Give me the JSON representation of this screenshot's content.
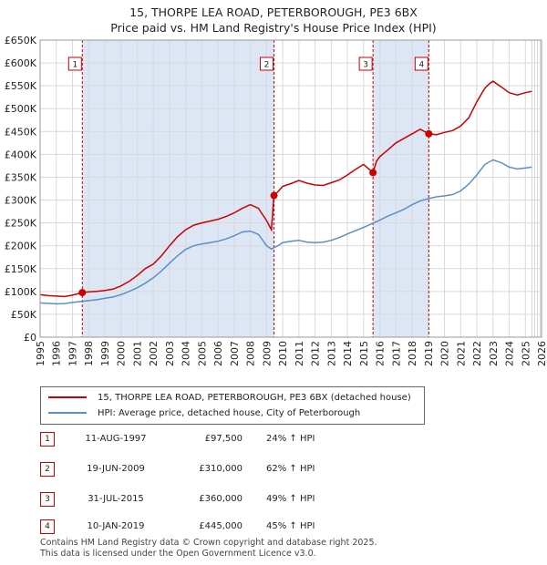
{
  "title_line1": "15, THORPE LEA ROAD, PETERBOROUGH, PE3 6BX",
  "title_line2": "Price paid vs. HM Land Registry's House Price Index (HPI)",
  "chart_data": {
    "type": "line",
    "xlim": [
      1995,
      2026
    ],
    "ylim": [
      0,
      650000
    ],
    "x_ticks": [
      1995,
      1996,
      1997,
      1998,
      1999,
      2000,
      2001,
      2002,
      2003,
      2004,
      2005,
      2006,
      2007,
      2008,
      2009,
      2010,
      2011,
      2012,
      2013,
      2014,
      2015,
      2016,
      2017,
      2018,
      2019,
      2020,
      2021,
      2022,
      2023,
      2024,
      2025,
      2026
    ],
    "y_ticks": [
      {
        "value": 0,
        "label": "£0"
      },
      {
        "value": 50000,
        "label": "£50K"
      },
      {
        "value": 100000,
        "label": "£100K"
      },
      {
        "value": 150000,
        "label": "£150K"
      },
      {
        "value": 200000,
        "label": "£200K"
      },
      {
        "value": 250000,
        "label": "£250K"
      },
      {
        "value": 300000,
        "label": "£300K"
      },
      {
        "value": 350000,
        "label": "£350K"
      },
      {
        "value": 400000,
        "label": "£400K"
      },
      {
        "value": 450000,
        "label": "£450K"
      },
      {
        "value": 500000,
        "label": "£500K"
      },
      {
        "value": 550000,
        "label": "£550K"
      },
      {
        "value": 600000,
        "label": "£600K"
      },
      {
        "value": 650000,
        "label": "£650K"
      }
    ],
    "series": [
      {
        "name": "15, THORPE LEA ROAD, PETERBOROUGH, PE3 6BX (detached house)",
        "color": "#cc0000",
        "points": [
          [
            1995.0,
            93000
          ],
          [
            1995.5,
            91000
          ],
          [
            1996.0,
            90000
          ],
          [
            1996.5,
            89000
          ],
          [
            1997.0,
            92000
          ],
          [
            1997.61,
            97500
          ],
          [
            1998.0,
            99000
          ],
          [
            1998.5,
            100000
          ],
          [
            1999.0,
            102000
          ],
          [
            1999.5,
            105000
          ],
          [
            2000.0,
            112000
          ],
          [
            2000.5,
            122000
          ],
          [
            2001.0,
            135000
          ],
          [
            2001.5,
            150000
          ],
          [
            2002.0,
            160000
          ],
          [
            2002.5,
            178000
          ],
          [
            2003.0,
            200000
          ],
          [
            2003.5,
            220000
          ],
          [
            2004.0,
            235000
          ],
          [
            2004.5,
            245000
          ],
          [
            2005.0,
            250000
          ],
          [
            2005.5,
            254000
          ],
          [
            2006.0,
            258000
          ],
          [
            2006.5,
            264000
          ],
          [
            2007.0,
            272000
          ],
          [
            2007.5,
            282000
          ],
          [
            2008.0,
            290000
          ],
          [
            2008.5,
            282000
          ],
          [
            2009.0,
            255000
          ],
          [
            2009.3,
            235000
          ],
          [
            2009.46,
            310000
          ],
          [
            2009.7,
            318000
          ],
          [
            2010.0,
            330000
          ],
          [
            2010.5,
            336000
          ],
          [
            2011.0,
            343000
          ],
          [
            2011.5,
            337000
          ],
          [
            2012.0,
            333000
          ],
          [
            2012.5,
            332000
          ],
          [
            2013.0,
            338000
          ],
          [
            2013.5,
            344000
          ],
          [
            2014.0,
            355000
          ],
          [
            2014.5,
            367000
          ],
          [
            2015.0,
            378000
          ],
          [
            2015.58,
            360000
          ],
          [
            2015.8,
            385000
          ],
          [
            2016.0,
            395000
          ],
          [
            2016.5,
            410000
          ],
          [
            2017.0,
            425000
          ],
          [
            2017.5,
            435000
          ],
          [
            2018.0,
            445000
          ],
          [
            2018.5,
            455000
          ],
          [
            2019.03,
            445000
          ],
          [
            2019.5,
            443000
          ],
          [
            2020.0,
            448000
          ],
          [
            2020.5,
            452000
          ],
          [
            2021.0,
            462000
          ],
          [
            2021.5,
            480000
          ],
          [
            2022.0,
            515000
          ],
          [
            2022.5,
            545000
          ],
          [
            2022.8,
            555000
          ],
          [
            2023.0,
            560000
          ],
          [
            2023.5,
            548000
          ],
          [
            2024.0,
            535000
          ],
          [
            2024.5,
            530000
          ],
          [
            2025.0,
            535000
          ],
          [
            2025.4,
            538000
          ]
        ]
      },
      {
        "name": "HPI: Average price, detached house, City of Peterborough",
        "color": "#5b8fc9",
        "points": [
          [
            1995.0,
            75000
          ],
          [
            1995.5,
            74000
          ],
          [
            1996.0,
            73000
          ],
          [
            1996.5,
            73500
          ],
          [
            1997.0,
            76000
          ],
          [
            1997.5,
            78000
          ],
          [
            1998.0,
            80000
          ],
          [
            1998.5,
            82000
          ],
          [
            1999.0,
            85000
          ],
          [
            1999.5,
            88000
          ],
          [
            2000.0,
            93000
          ],
          [
            2000.5,
            100000
          ],
          [
            2001.0,
            108000
          ],
          [
            2001.5,
            118000
          ],
          [
            2002.0,
            130000
          ],
          [
            2002.5,
            145000
          ],
          [
            2003.0,
            162000
          ],
          [
            2003.5,
            178000
          ],
          [
            2004.0,
            192000
          ],
          [
            2004.5,
            200000
          ],
          [
            2005.0,
            204000
          ],
          [
            2005.5,
            207000
          ],
          [
            2006.0,
            210000
          ],
          [
            2006.5,
            215000
          ],
          [
            2007.0,
            222000
          ],
          [
            2007.5,
            230000
          ],
          [
            2008.0,
            232000
          ],
          [
            2008.5,
            225000
          ],
          [
            2009.0,
            200000
          ],
          [
            2009.3,
            193000
          ],
          [
            2009.7,
            200000
          ],
          [
            2010.0,
            207000
          ],
          [
            2010.5,
            210000
          ],
          [
            2011.0,
            212000
          ],
          [
            2011.5,
            208000
          ],
          [
            2012.0,
            207000
          ],
          [
            2012.5,
            208000
          ],
          [
            2013.0,
            212000
          ],
          [
            2013.5,
            218000
          ],
          [
            2014.0,
            226000
          ],
          [
            2014.5,
            233000
          ],
          [
            2015.0,
            240000
          ],
          [
            2015.5,
            248000
          ],
          [
            2016.0,
            256000
          ],
          [
            2016.5,
            265000
          ],
          [
            2017.0,
            272000
          ],
          [
            2017.5,
            280000
          ],
          [
            2018.0,
            290000
          ],
          [
            2018.5,
            298000
          ],
          [
            2019.0,
            303000
          ],
          [
            2019.5,
            307000
          ],
          [
            2020.0,
            309000
          ],
          [
            2020.5,
            312000
          ],
          [
            2021.0,
            320000
          ],
          [
            2021.5,
            335000
          ],
          [
            2022.0,
            355000
          ],
          [
            2022.5,
            378000
          ],
          [
            2023.0,
            388000
          ],
          [
            2023.5,
            382000
          ],
          [
            2024.0,
            372000
          ],
          [
            2024.5,
            368000
          ],
          [
            2025.0,
            370000
          ],
          [
            2025.4,
            372000
          ]
        ]
      }
    ],
    "sales": [
      {
        "id": "1",
        "x": 1997.61,
        "price": 97500
      },
      {
        "id": "2",
        "x": 2009.46,
        "price": 310000
      },
      {
        "id": "3",
        "x": 2015.58,
        "price": 360000
      },
      {
        "id": "4",
        "x": 2019.03,
        "price": 445000
      }
    ],
    "shade_bands": [
      [
        1997.61,
        2009.46
      ],
      [
        2015.58,
        2019.03
      ]
    ],
    "forecast_start": 2025.4
  },
  "legend": {
    "property_label": "15, THORPE LEA ROAD, PETERBOROUGH, PE3 6BX (detached house)",
    "hpi_label": "HPI: Average price, detached house, City of Peterborough"
  },
  "sales_table": [
    {
      "num": "1",
      "date": "11-AUG-1997",
      "price": "£97,500",
      "hpi": "24% ↑ HPI"
    },
    {
      "num": "2",
      "date": "19-JUN-2009",
      "price": "£310,000",
      "hpi": "62% ↑ HPI"
    },
    {
      "num": "3",
      "date": "31-JUL-2015",
      "price": "£360,000",
      "hpi": "49% ↑ HPI"
    },
    {
      "num": "4",
      "date": "10-JAN-2019",
      "price": "£445,000",
      "hpi": "45% ↑ HPI"
    }
  ],
  "footer_line1": "Contains HM Land Registry data © Crown copyright and database right 2025.",
  "footer_line2": "This data is licensed under the Open Government Licence v3.0."
}
